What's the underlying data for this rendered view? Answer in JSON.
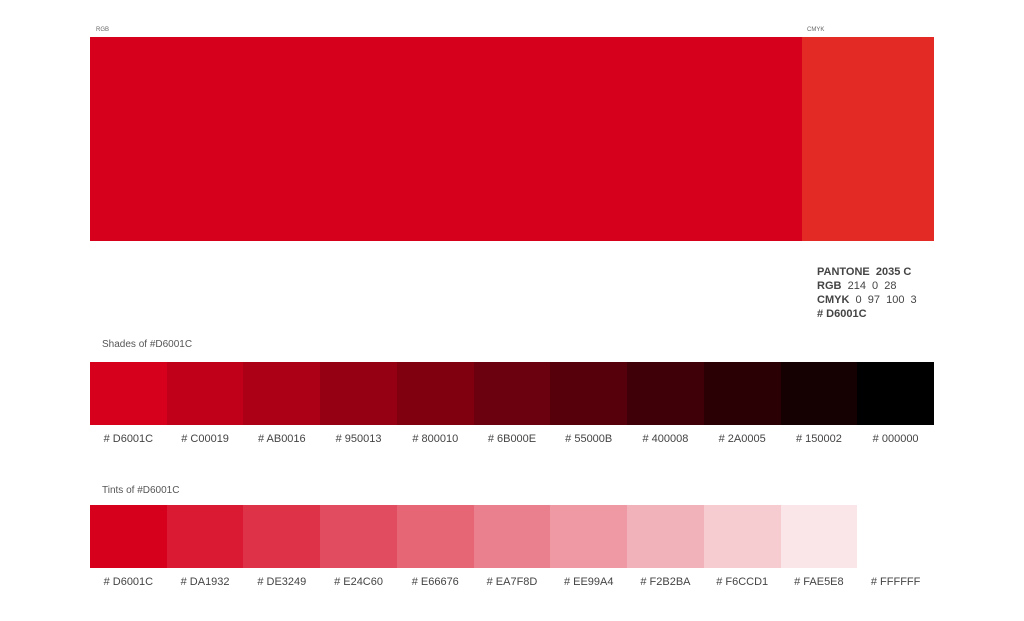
{
  "header": {
    "rgb_label": "RGB",
    "rgb_color": "#D6001C",
    "cmyk_label": "CMYK",
    "cmyk_color": "#E42A24"
  },
  "spec": [
    {
      "key": "PANTONE",
      "value": "2035 C",
      "value_bold": true
    },
    {
      "key": "RGB",
      "value": "214  0  28",
      "value_bold": false
    },
    {
      "key": "CMYK",
      "value": "0  97  100  3",
      "value_bold": false
    },
    {
      "key": "# D6001C",
      "value": "",
      "value_bold": true
    }
  ],
  "shades": {
    "title": "Shades of #D6001C",
    "swatches": [
      {
        "label": "# D6001C",
        "color": "#D6001C"
      },
      {
        "label": "# C00019",
        "color": "#C00019"
      },
      {
        "label": "# AB0016",
        "color": "#AB0016"
      },
      {
        "label": "# 950013",
        "color": "#950013"
      },
      {
        "label": "# 800010",
        "color": "#800010"
      },
      {
        "label": "# 6B000E",
        "color": "#6B000E"
      },
      {
        "label": "# 55000B",
        "color": "#55000B"
      },
      {
        "label": "# 400008",
        "color": "#400008"
      },
      {
        "label": "# 2A0005",
        "color": "#2A0005"
      },
      {
        "label": "# 150002",
        "color": "#150002"
      },
      {
        "label": "# 000000",
        "color": "#000000"
      }
    ]
  },
  "tints": {
    "title": "Tints of #D6001C",
    "swatches": [
      {
        "label": "# D6001C",
        "color": "#D6001C"
      },
      {
        "label": "# DA1932",
        "color": "#DA1932"
      },
      {
        "label": "# DE3249",
        "color": "#DE3249"
      },
      {
        "label": "# E24C60",
        "color": "#E24C60"
      },
      {
        "label": "# E66676",
        "color": "#E66676"
      },
      {
        "label": "# EA7F8D",
        "color": "#EA7F8D"
      },
      {
        "label": "# EE99A4",
        "color": "#EE99A4"
      },
      {
        "label": "# F2B2BA",
        "color": "#F2B2BA"
      },
      {
        "label": "# F6CCD1",
        "color": "#F6CCD1"
      },
      {
        "label": "# FAE5E8",
        "color": "#FAE5E8"
      },
      {
        "label": "# FFFFFF",
        "color": "#FFFFFF"
      }
    ]
  }
}
